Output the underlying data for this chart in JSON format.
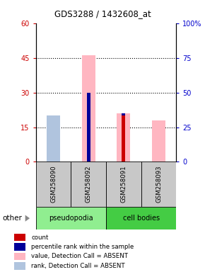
{
  "title": "GDS3288 / 1432608_at",
  "samples": [
    "GSM258090",
    "GSM258092",
    "GSM258091",
    "GSM258093"
  ],
  "ylim_left": [
    0,
    60
  ],
  "ylim_right": [
    0,
    100
  ],
  "yticks_left": [
    0,
    15,
    30,
    45,
    60
  ],
  "yticks_right": [
    0,
    25,
    50,
    75,
    100
  ],
  "ytick_labels_left": [
    "0",
    "15",
    "30",
    "45",
    "60"
  ],
  "ytick_labels_right": [
    "0",
    "25",
    "50",
    "75",
    "100%"
  ],
  "pink_bar_values": [
    20,
    46,
    21,
    18
  ],
  "lavender_bar_values": [
    20,
    0,
    0,
    0
  ],
  "count_values": [
    0,
    0,
    20,
    0
  ],
  "rank_values": [
    0,
    30,
    21,
    0
  ],
  "rank_on_count": [
    0,
    0,
    1,
    0
  ],
  "count_color": "#CC0000",
  "rank_color": "#000099",
  "pink_color": "#FFB6C1",
  "lavender_color": "#B0C4DE",
  "left_axis_color": "#CC0000",
  "right_axis_color": "#0000CC",
  "pseudopodia_color": "#90EE90",
  "cell_bodies_color": "#44CC44",
  "legend_items": [
    {
      "color": "#CC0000",
      "label": "count"
    },
    {
      "color": "#000099",
      "label": "percentile rank within the sample"
    },
    {
      "color": "#FFB6C1",
      "label": "value, Detection Call = ABSENT"
    },
    {
      "color": "#B0C4DE",
      "label": "rank, Detection Call = ABSENT"
    }
  ]
}
